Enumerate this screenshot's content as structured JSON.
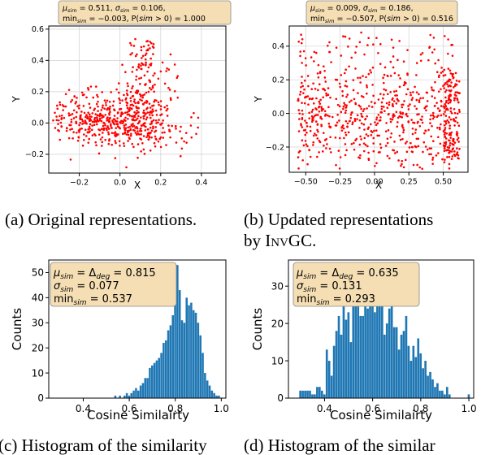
{
  "colors": {
    "scatter": "#ff0000",
    "hist": "#1f77b4",
    "annot_bg": "#f5deb3",
    "annot_border": "#888888"
  },
  "charts": {
    "a": {
      "annotation": "μsim = 0.511, σsim = 0.106, minsim = −0.003, P(sim > 0) = 1.000",
      "ann_parts": {
        "mu_l": "μ",
        "mu_v": " = 0.511, ",
        "sg_l": "σ",
        "sg_v": " = 0.106,",
        "mn_l": "min",
        "mn_v": " = −0.003, P(",
        "sim": "sim",
        "mn_v2": " > 0) = 1.000",
        "sub": "sim"
      },
      "xlabel": "X",
      "ylabel": "Y",
      "xticks": [
        "−0.2",
        "0.0",
        "0.2",
        "0.4"
      ],
      "yticks": [
        "−0.2",
        "0.0",
        "0.2",
        "0.4",
        "0.6"
      ],
      "caption": "(a) Original representations."
    },
    "b": {
      "annotation": "μsim = 0.009, σsim = 0.186, minsim = −0.507, P(sim > 0) = 0.516",
      "ann_parts": {
        "mu_v": " = 0.009, ",
        "sg_v": " = 0.186,",
        "mn_v": " = −0.507, P(",
        "mn_v2": " > 0) = 0.516"
      },
      "xlabel": "X",
      "ylabel": "Y",
      "xticks": [
        "−0.50",
        "−0.25",
        "0.00",
        "0.25",
        "0.50"
      ],
      "yticks": [
        "−0.2",
        "0.0",
        "0.2",
        "0.4"
      ],
      "caption_1": "(b) Updated representations",
      "caption_2_pre": "by ",
      "caption_2_sc": "InvGC."
    },
    "c": {
      "annotation": "μsim = Δdeg = 0.815, σsim = 0.077, minsim = 0.537",
      "ann_parts": {
        "mu_v": " = 0.815",
        "sg_v": " = 0.077",
        "mn_v": " = 0.537",
        "delta": "Δ",
        "deg": "deg"
      },
      "xlabel": "Cosine Similairty",
      "ylabel": "Counts",
      "xticks": [
        "0.4",
        "0.6",
        "0.8",
        "1.0"
      ],
      "yticks": [
        "0",
        "10",
        "20",
        "30",
        "40",
        "50"
      ],
      "caption": "(c) Histogram of the similarity"
    },
    "d": {
      "annotation": "μsim = Δdeg = 0.635, σsim = 0.131, minsim = 0.293",
      "ann_parts": {
        "mu_v": " = 0.635",
        "sg_v": " = 0.131",
        "mn_v": " = 0.293"
      },
      "xlabel": "Cosine Similairty",
      "ylabel": "Counts",
      "xticks": [
        "0.4",
        "0.6",
        "0.8",
        "1.0"
      ],
      "yticks": [
        "0",
        "10",
        "20",
        "30"
      ],
      "caption": "(d) Histogram of the similar"
    }
  },
  "chart_data": [
    {
      "id": "a",
      "type": "scatter",
      "xlabel": "X",
      "ylabel": "Y",
      "xlim": [
        -0.35,
        0.52
      ],
      "ylim": [
        -0.32,
        0.62
      ],
      "density": {
        "center": [
          -0.05,
          0.0
        ],
        "sx": 0.17,
        "sy": 0.08,
        "tail": "upward spread near x = 0.1"
      },
      "n_points": 700
    },
    {
      "id": "b",
      "type": "scatter",
      "xlabel": "X",
      "ylabel": "Y",
      "xlim": [
        -0.62,
        0.68
      ],
      "ylim": [
        -0.35,
        0.52
      ],
      "density": {
        "center": [
          0.0,
          0.0
        ],
        "sx": 0.33,
        "sy": 0.16,
        "right_edge_x": 0.62
      },
      "n_points": 800
    },
    {
      "id": "c",
      "type": "bar",
      "xlabel": "Cosine Similairty",
      "ylabel": "Counts",
      "xlim": [
        0.25,
        1.02
      ],
      "ylim": [
        0,
        55
      ],
      "bin_width": 0.01,
      "bin_centers": [
        0.54,
        0.55,
        0.56,
        0.57,
        0.58,
        0.59,
        0.6,
        0.61,
        0.62,
        0.63,
        0.64,
        0.65,
        0.66,
        0.67,
        0.68,
        0.69,
        0.7,
        0.71,
        0.72,
        0.73,
        0.74,
        0.75,
        0.76,
        0.77,
        0.78,
        0.79,
        0.8,
        0.81,
        0.82,
        0.83,
        0.84,
        0.85,
        0.86,
        0.87,
        0.88,
        0.89,
        0.9,
        0.91,
        0.92,
        0.93,
        0.94,
        0.95,
        0.96,
        0.97,
        0.98,
        0.99
      ],
      "counts": [
        1,
        0,
        1,
        0,
        1,
        2,
        1,
        2,
        3,
        4,
        3,
        5,
        6,
        8,
        8,
        12,
        13,
        14,
        15,
        16,
        18,
        22,
        23,
        27,
        29,
        33,
        47,
        53,
        43,
        31,
        30,
        40,
        37,
        38,
        35,
        34,
        30,
        25,
        18,
        10,
        7,
        5,
        3,
        2,
        1,
        1
      ]
    },
    {
      "id": "d",
      "type": "bar",
      "xlabel": "Cosine Similairty",
      "ylabel": "Counts",
      "xlim": [
        0.25,
        1.02
      ],
      "ylim": [
        0,
        37
      ],
      "bin_width": 0.01,
      "bin_centers": [
        0.3,
        0.31,
        0.32,
        0.33,
        0.34,
        0.35,
        0.36,
        0.37,
        0.38,
        0.39,
        0.4,
        0.41,
        0.42,
        0.43,
        0.44,
        0.45,
        0.46,
        0.47,
        0.48,
        0.49,
        0.5,
        0.51,
        0.52,
        0.53,
        0.54,
        0.55,
        0.56,
        0.57,
        0.58,
        0.59,
        0.6,
        0.61,
        0.62,
        0.63,
        0.64,
        0.65,
        0.66,
        0.67,
        0.68,
        0.69,
        0.7,
        0.71,
        0.72,
        0.73,
        0.74,
        0.75,
        0.76,
        0.77,
        0.78,
        0.79,
        0.8,
        0.81,
        0.82,
        0.83,
        0.84,
        0.85,
        0.86,
        0.87,
        0.88,
        0.89,
        0.9,
        0.91,
        0.92,
        0.93,
        0.94,
        0.95,
        0.96,
        0.97,
        0.98,
        0.99,
        1.0
      ],
      "counts": [
        2,
        2,
        2,
        2,
        2,
        1,
        1,
        3,
        3,
        2,
        1,
        13,
        10,
        6,
        14,
        18,
        22,
        17,
        25,
        21,
        23,
        15,
        28,
        28,
        31,
        22,
        22,
        35,
        24,
        35,
        26,
        23,
        32,
        27,
        26,
        17,
        20,
        24,
        30,
        19,
        19,
        13,
        17,
        18,
        22,
        14,
        10,
        14,
        11,
        16,
        12,
        8,
        10,
        6,
        7,
        5,
        3,
        4,
        2,
        2,
        1,
        3,
        1,
        0,
        0,
        0,
        0,
        0,
        0,
        0,
        1
      ]
    }
  ]
}
